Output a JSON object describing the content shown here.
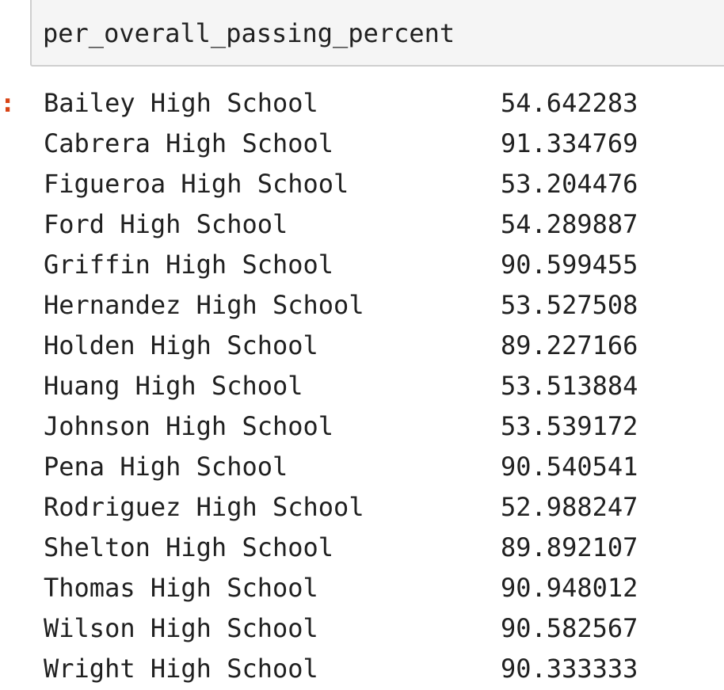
{
  "input_cell": {
    "code": "per_overall_passing_percent"
  },
  "output_prompt": ":",
  "output_rows": [
    {
      "name": "Bailey High School",
      "value": "54.642283"
    },
    {
      "name": "Cabrera High School",
      "value": "91.334769"
    },
    {
      "name": "Figueroa High School",
      "value": "53.204476"
    },
    {
      "name": "Ford High School",
      "value": "54.289887"
    },
    {
      "name": "Griffin High School",
      "value": "90.599455"
    },
    {
      "name": "Hernandez High School",
      "value": "53.527508"
    },
    {
      "name": "Holden High School",
      "value": "89.227166"
    },
    {
      "name": "Huang High School",
      "value": "53.513884"
    },
    {
      "name": "Johnson High School",
      "value": "53.539172"
    },
    {
      "name": "Pena High School",
      "value": "90.540541"
    },
    {
      "name": "Rodriguez High School",
      "value": "52.988247"
    },
    {
      "name": "Shelton High School",
      "value": "89.892107"
    },
    {
      "name": "Thomas High School",
      "value": "90.948012"
    },
    {
      "name": "Wilson High School",
      "value": "90.582567"
    },
    {
      "name": "Wright High School",
      "value": "90.333333"
    }
  ]
}
